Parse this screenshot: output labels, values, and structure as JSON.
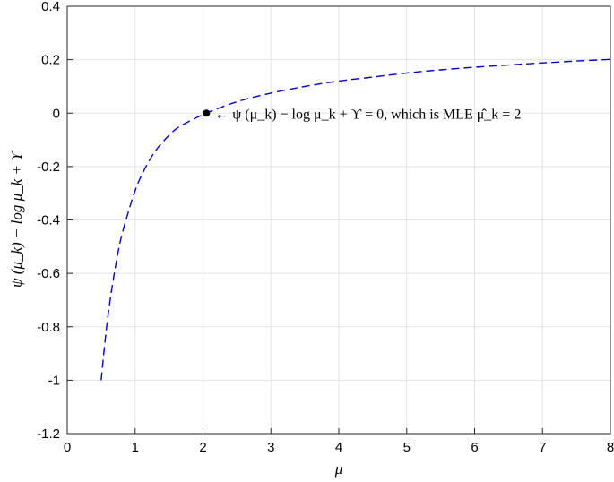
{
  "chart_data": {
    "type": "line",
    "xlabel": "μ",
    "ylabel": "ψ (μ_k) − log μ_k + ϒ",
    "xlim": [
      0,
      8
    ],
    "ylim": [
      -1.2,
      0.4
    ],
    "xticks": [
      0,
      1,
      2,
      3,
      4,
      5,
      6,
      7,
      8
    ],
    "yticks": [
      -1.2,
      -1,
      -0.8,
      -0.6,
      -0.4,
      -0.2,
      0,
      0.2,
      0.4
    ],
    "xtick_labels": [
      "0",
      "1",
      "2",
      "3",
      "4",
      "5",
      "6",
      "7",
      "8"
    ],
    "ytick_labels": [
      "-1.2",
      "-1",
      "-0.8",
      "-0.6",
      "-0.4",
      "-0.2",
      "0",
      "0.2",
      "0.4"
    ],
    "grid": true,
    "series": [
      {
        "line_style": "dashed",
        "color": "#0000cc",
        "x": [
          0.5,
          0.55,
          0.6,
          0.65,
          0.7,
          0.75,
          0.8,
          0.9,
          1.0,
          1.1,
          1.25,
          1.4,
          1.6,
          1.8,
          2.05,
          2.3,
          2.6,
          3.0,
          3.5,
          4.0,
          4.5,
          5.0,
          5.5,
          6.0,
          6.5,
          7.0,
          7.5,
          8.0
        ],
        "y": [
          -1.0,
          -0.87,
          -0.76,
          -0.67,
          -0.59,
          -0.52,
          -0.46,
          -0.37,
          -0.29,
          -0.23,
          -0.16,
          -0.11,
          -0.06,
          -0.03,
          0.0,
          0.025,
          0.05,
          0.075,
          0.1,
          0.12,
          0.135,
          0.15,
          0.162,
          0.172,
          0.18,
          0.188,
          0.195,
          0.201
        ]
      }
    ],
    "marker_point": {
      "x": 2.05,
      "y": 0
    },
    "annotation": "← ψ (μ_k) − log μ_k + ϒ = 0, which is MLE μ̂_k = 2"
  }
}
